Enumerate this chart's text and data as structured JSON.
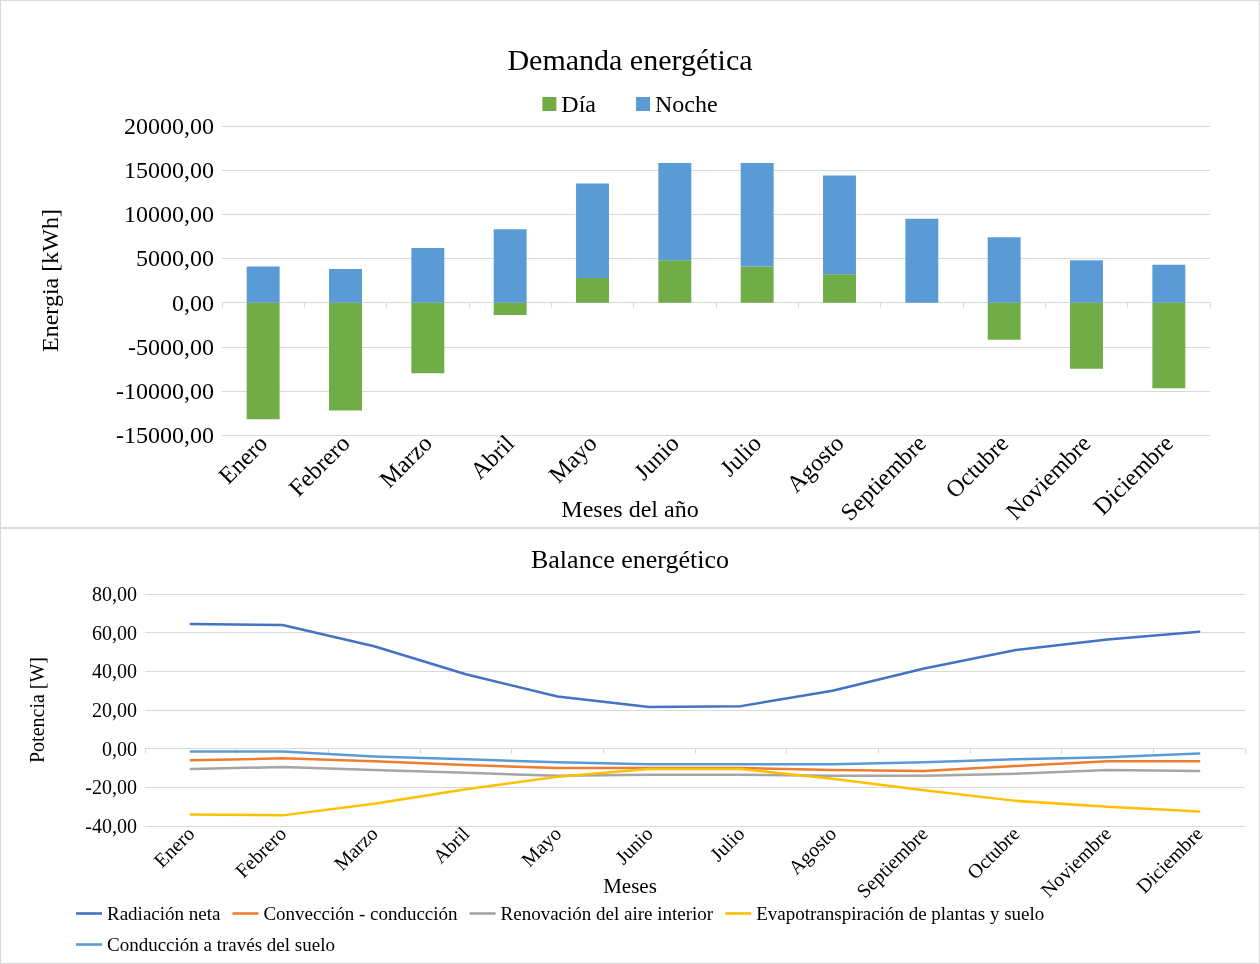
{
  "chart_data": [
    {
      "type": "bar",
      "title": "Demanda energética",
      "xlabel": "Meses del año",
      "ylabel": "Energia [kWh]",
      "categories": [
        "Enero",
        "Febrero",
        "Marzo",
        "Abril",
        "Mayo",
        "Junio",
        "Julio",
        "Agosto",
        "Septiembre",
        "Octubre",
        "Noviembre",
        "Diciembre"
      ],
      "stacked": true,
      "series": [
        {
          "name": "Día",
          "color": "#70ad47",
          "values": [
            -13200,
            -12200,
            -8000,
            -1400,
            2800,
            4800,
            4100,
            3200,
            0,
            -4200,
            -7500,
            -9700
          ]
        },
        {
          "name": "Noche",
          "color": "#5b9bd5",
          "values": [
            4100,
            3800,
            6200,
            8300,
            10700,
            11000,
            11700,
            11200,
            9500,
            7400,
            4800,
            4300
          ]
        }
      ],
      "ylim": [
        -15000,
        20000
      ],
      "yticks": [
        {
          "value": -15000,
          "label": "-15000,00"
        },
        {
          "value": -10000,
          "label": "-10000,00"
        },
        {
          "value": -5000,
          "label": "-5000,00"
        },
        {
          "value": 0,
          "label": "0,00"
        },
        {
          "value": 5000,
          "label": "5000,00"
        },
        {
          "value": 10000,
          "label": "10000,00"
        },
        {
          "value": 15000,
          "label": "15000,00"
        },
        {
          "value": 20000,
          "label": "20000,00"
        }
      ],
      "grid": "y",
      "legend": "top"
    },
    {
      "type": "line",
      "title": "Balance energético",
      "xlabel": "Meses",
      "ylabel": "Potencia [W]",
      "categories": [
        "Enero",
        "Febrero",
        "Marzo",
        "Abril",
        "Mayo",
        "Junio",
        "Julio",
        "Agosto",
        "Septiembre",
        "Octubre",
        "Noviembre",
        "Diciembre"
      ],
      "series": [
        {
          "name": "Radiación neta",
          "color": "#4472c4",
          "values": [
            64.5,
            64,
            53,
            38.5,
            27,
            21.5,
            22,
            30,
            41.5,
            51,
            56.5,
            60.5
          ]
        },
        {
          "name": "Convección - conducción",
          "color": "#ed7d31",
          "values": [
            -6,
            -5,
            -6.5,
            -8.5,
            -10,
            -10,
            -10,
            -11,
            -11.5,
            -9,
            -6.5,
            -6.5
          ]
        },
        {
          "name": "Renovación del aire interior",
          "color": "#a5a5a5",
          "values": [
            -10.5,
            -9.5,
            -11,
            -12.5,
            -14,
            -13.5,
            -13.5,
            -14,
            -14,
            -13,
            -11,
            -11.5
          ]
        },
        {
          "name": "Evapotranspiración de plantas y suelo",
          "color": "#ffc000",
          "values": [
            -34,
            -34.5,
            -28.5,
            -21,
            -14.5,
            -10.5,
            -10.5,
            -15.5,
            -21.5,
            -27,
            -30,
            -32.5
          ]
        },
        {
          "name": "Conducción a través del suelo",
          "color": "#5b9bd5",
          "values": [
            -1.5,
            -1.5,
            -4,
            -5.5,
            -7,
            -8,
            -8,
            -8,
            -7,
            -5.5,
            -4.5,
            -2.5
          ]
        }
      ],
      "ylim": [
        -40,
        80
      ],
      "yticks": [
        {
          "value": -40,
          "label": "-40,00"
        },
        {
          "value": -20,
          "label": "-20,00"
        },
        {
          "value": 0,
          "label": "0,00"
        },
        {
          "value": 20,
          "label": "20,00"
        },
        {
          "value": 40,
          "label": "40,00"
        },
        {
          "value": 60,
          "label": "60,00"
        },
        {
          "value": 80,
          "label": "80,00"
        }
      ],
      "grid": "y",
      "legend": "bottom",
      "marker": "none",
      "line_style": "solid"
    }
  ]
}
